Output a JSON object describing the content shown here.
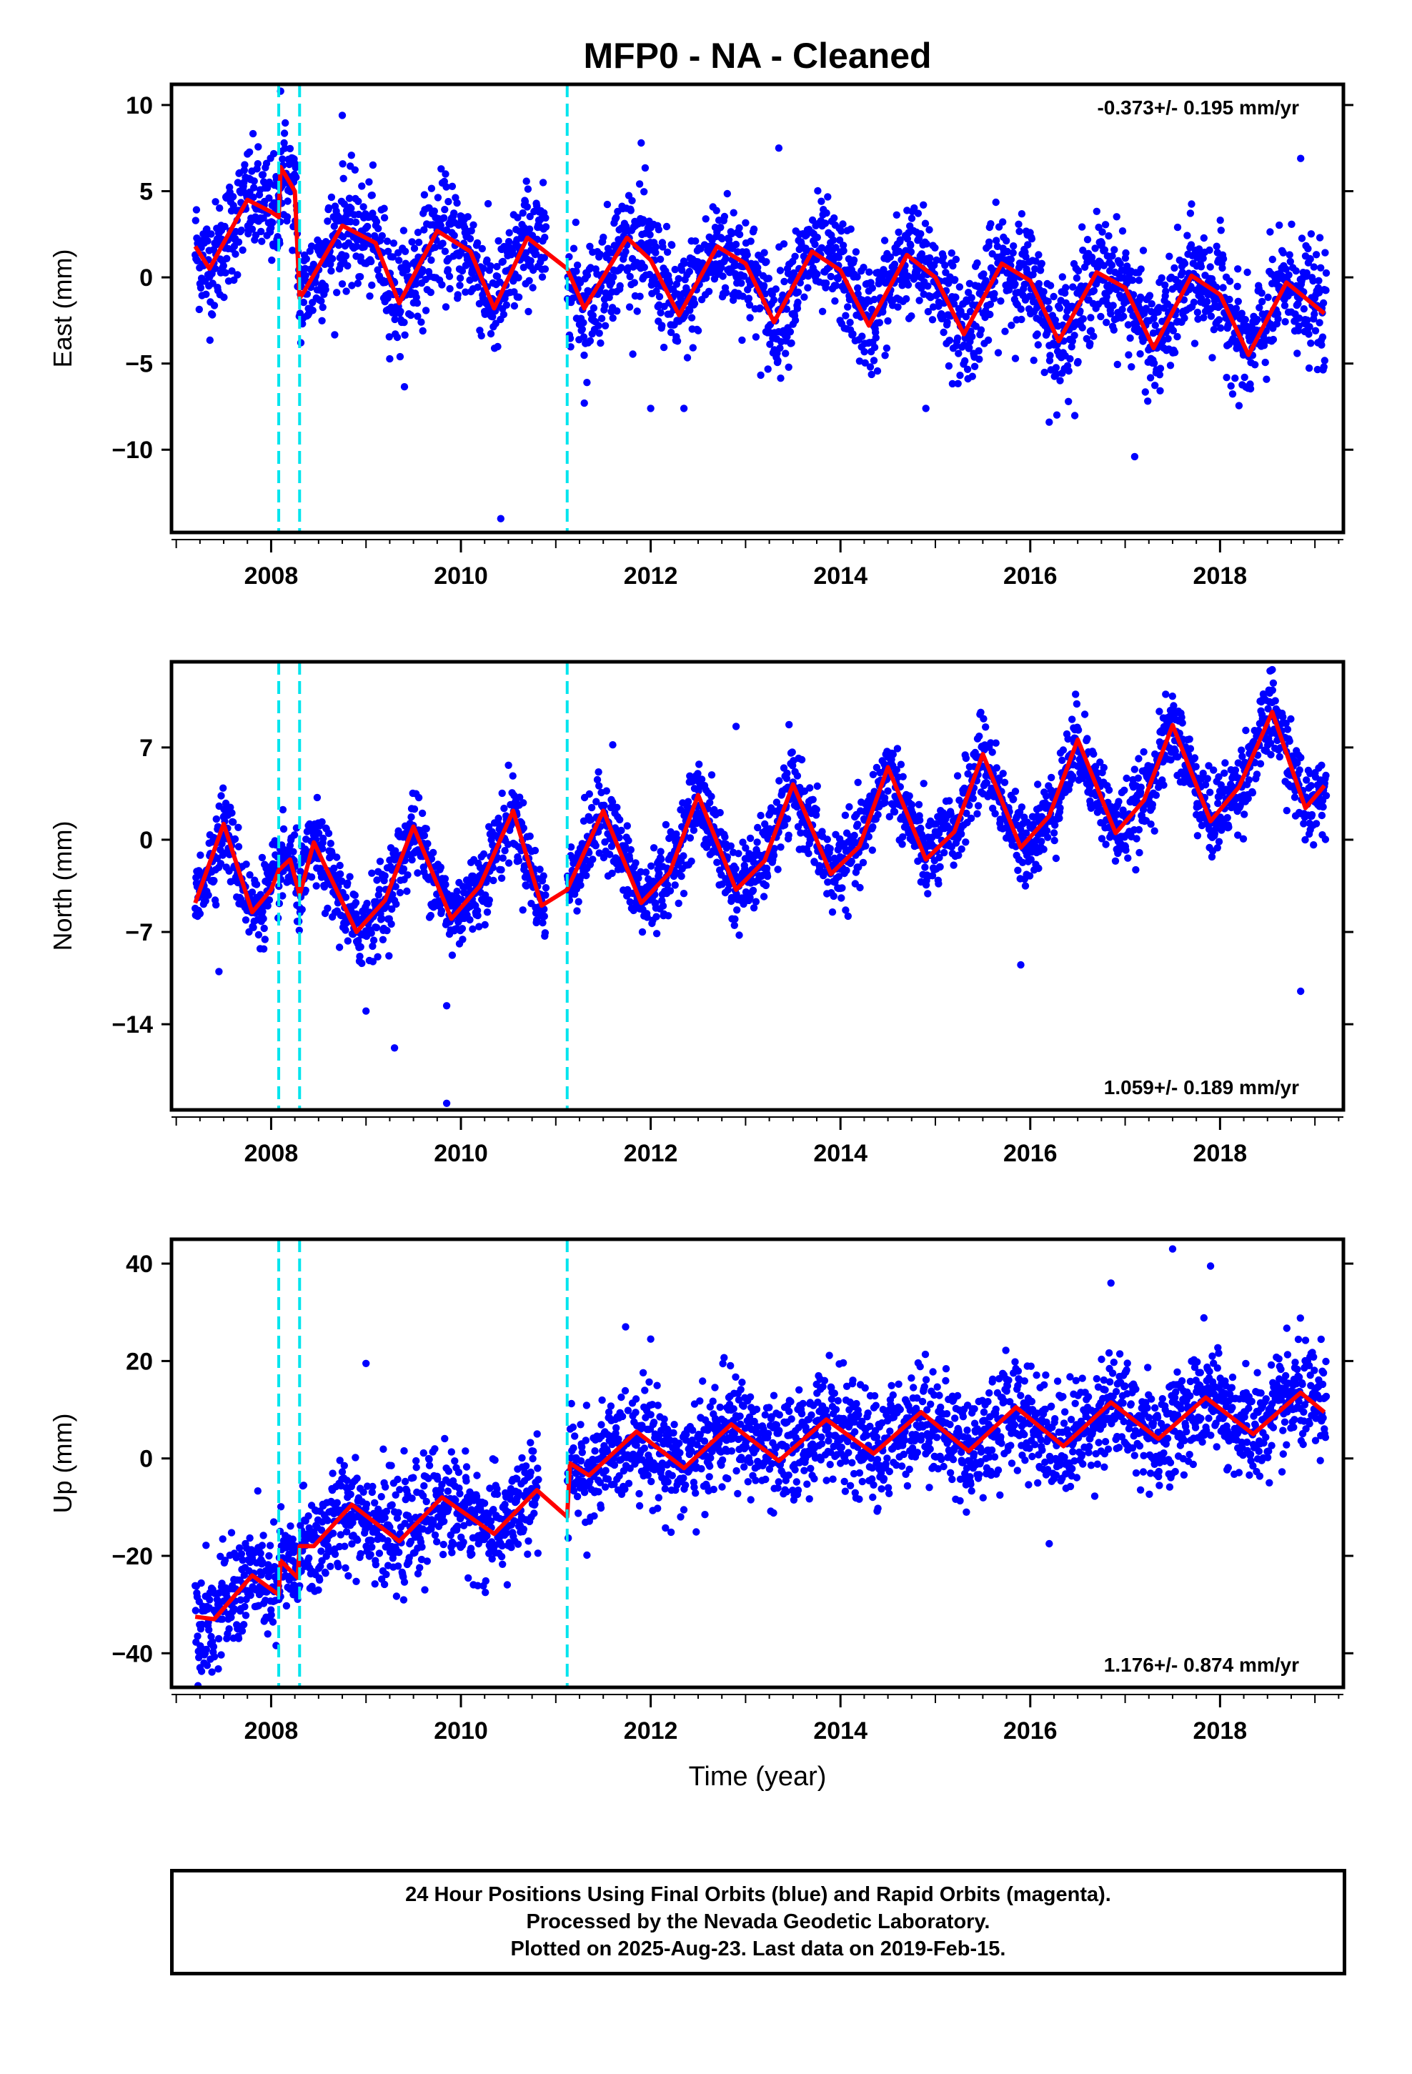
{
  "title": "MFP0  - NA - Cleaned",
  "xlabel": "Time (year)",
  "footer": {
    "line1": "24 Hour Positions Using Final Orbits (blue) and Rapid Orbits (magenta).",
    "line2": "Processed by the Nevada Geodetic Laboratory.",
    "line3": "Plotted on 2025-Aug-23. Last data on 2019-Feb-15."
  },
  "colors": {
    "data_points": "#0000ff",
    "model_line": "#ff0000",
    "offset_lines": "#00e5ee",
    "frame": "#000000"
  },
  "chart_data": [
    {
      "type": "scatter",
      "component": "East",
      "ylabel": "East (mm)",
      "rate_label": "-0.373+/- 0.195 mm/yr",
      "rate_position": "top-right",
      "xlim": [
        2006.95,
        2019.3
      ],
      "ylim": [
        -14.8,
        11.2
      ],
      "yticks": [
        10,
        5,
        0,
        -5,
        -10
      ],
      "xticks": [
        2008,
        2010,
        2012,
        2014,
        2016,
        2018
      ],
      "offsets": [
        2008.08,
        2008.3,
        2011.12
      ],
      "model": {
        "x": [
          2007.2,
          2007.35,
          2007.5,
          2007.75,
          2008.0,
          2008.08,
          2008.1,
          2008.25,
          2008.3,
          2008.35,
          2008.75,
          2009.1,
          2009.35,
          2009.75,
          2010.1,
          2010.35,
          2010.7,
          2011.12,
          2011.3,
          2011.75,
          2012.0,
          2012.3,
          2012.7,
          2013.0,
          2013.3,
          2013.7,
          2014.0,
          2014.3,
          2014.7,
          2015.0,
          2015.3,
          2015.7,
          2016.0,
          2016.3,
          2016.7,
          2017.0,
          2017.3,
          2017.7,
          2018.0,
          2018.3,
          2018.7,
          2019.1
        ],
        "y": [
          1.8,
          0.5,
          2.0,
          4.5,
          3.8,
          3.5,
          6.4,
          5.0,
          -1.2,
          -0.8,
          3.0,
          2.0,
          -1.5,
          2.7,
          1.5,
          -1.8,
          2.3,
          0.5,
          -1.8,
          2.3,
          1.0,
          -2.2,
          1.8,
          0.8,
          -2.6,
          1.5,
          0.4,
          -2.8,
          1.3,
          0.0,
          -3.3,
          0.8,
          -0.2,
          -3.7,
          0.3,
          -0.6,
          -4.1,
          0.1,
          -1.0,
          -4.5,
          -0.3,
          -2.1
        ]
      },
      "series": {
        "name": "",
        "amplitude": 2.8,
        "trend": -0.373,
        "noise": 1.6,
        "outliers": [
          [
            2008.1,
            10.8
          ],
          [
            2008.75,
            9.4
          ],
          [
            2010.42,
            -14.0
          ],
          [
            2011.3,
            -7.3
          ],
          [
            2011.9,
            7.8
          ],
          [
            2012.0,
            -7.6
          ],
          [
            2012.35,
            -7.6
          ],
          [
            2013.35,
            7.5
          ],
          [
            2014.9,
            -7.6
          ],
          [
            2016.2,
            -8.4
          ],
          [
            2017.1,
            -10.4
          ],
          [
            2018.85,
            6.9
          ]
        ]
      }
    },
    {
      "type": "scatter",
      "component": "North",
      "ylabel": "North (mm)",
      "rate_label": "1.059+/- 0.189 mm/yr",
      "rate_position": "bottom-right",
      "xlim": [
        2006.95,
        2019.3
      ],
      "ylim": [
        -20.5,
        13.5
      ],
      "yticks": [
        7,
        0,
        -7,
        -14
      ],
      "xticks": [
        2008,
        2010,
        2012,
        2014,
        2016,
        2018
      ],
      "offsets": [
        2008.08,
        2008.3,
        2011.12
      ],
      "model": {
        "x": [
          2007.2,
          2007.5,
          2007.8,
          2008.0,
          2008.08,
          2008.2,
          2008.3,
          2008.45,
          2008.9,
          2009.2,
          2009.5,
          2009.9,
          2010.2,
          2010.55,
          2010.85,
          2011.12,
          2011.5,
          2011.9,
          2012.2,
          2012.5,
          2012.9,
          2013.2,
          2013.5,
          2013.9,
          2014.2,
          2014.5,
          2014.9,
          2015.2,
          2015.5,
          2015.9,
          2016.2,
          2016.5,
          2016.9,
          2017.2,
          2017.5,
          2017.9,
          2018.2,
          2018.55,
          2018.9,
          2019.1
        ],
        "y": [
          -4.8,
          1.2,
          -5.5,
          -3.8,
          -2.3,
          -1.5,
          -4.2,
          -0.2,
          -7.0,
          -4.6,
          1.0,
          -6.0,
          -3.5,
          2.2,
          -5.0,
          -3.8,
          2.2,
          -4.8,
          -2.5,
          3.4,
          -3.8,
          -1.6,
          4.2,
          -2.6,
          -0.5,
          5.5,
          -1.5,
          0.6,
          6.5,
          -0.6,
          1.8,
          7.6,
          0.5,
          3.0,
          8.7,
          1.4,
          4.0,
          9.7,
          2.4,
          4.1
        ]
      },
      "series": {
        "name": "",
        "amplitude": 4.0,
        "trend": 1.059,
        "noise": 1.5,
        "outliers": [
          [
            2007.45,
            -10.0
          ],
          [
            2009.0,
            -13.0
          ],
          [
            2009.3,
            -15.8
          ],
          [
            2009.85,
            -12.6
          ],
          [
            2009.85,
            -20.0
          ],
          [
            2011.6,
            7.2
          ],
          [
            2012.9,
            8.6
          ],
          [
            2015.9,
            -9.5
          ],
          [
            2018.55,
            12.9
          ],
          [
            2018.85,
            -11.5
          ]
        ]
      }
    },
    {
      "type": "scatter",
      "component": "Up",
      "ylabel": "Up (mm)",
      "rate_label": "1.176+/- 0.874 mm/yr",
      "rate_position": "bottom-right",
      "xlim": [
        2006.95,
        2019.3
      ],
      "ylim": [
        -47,
        45
      ],
      "yticks": [
        40,
        20,
        0,
        -20,
        -40
      ],
      "xticks": [
        2008,
        2010,
        2012,
        2014,
        2016,
        2018
      ],
      "offsets": [
        2008.08,
        2008.3,
        2011.12
      ],
      "model": {
        "x": [
          2007.2,
          2007.4,
          2007.8,
          2008.08,
          2008.1,
          2008.28,
          2008.3,
          2008.45,
          2008.85,
          2009.35,
          2009.8,
          2010.35,
          2010.8,
          2011.12,
          2011.15,
          2011.35,
          2011.85,
          2012.35,
          2012.85,
          2013.35,
          2013.85,
          2014.35,
          2014.85,
          2015.35,
          2015.85,
          2016.35,
          2016.85,
          2017.35,
          2017.85,
          2018.35,
          2018.85,
          2019.1
        ],
        "y": [
          -32.5,
          -33.0,
          -24.0,
          -28.0,
          -21.0,
          -24.5,
          -18.0,
          -18.0,
          -9.5,
          -17.0,
          -8.0,
          -15.5,
          -6.5,
          -12.0,
          -1.0,
          -3.5,
          5.5,
          -2.0,
          7.0,
          -0.5,
          8.0,
          1.0,
          9.5,
          1.5,
          10.5,
          2.5,
          11.5,
          4.0,
          12.5,
          5.0,
          13.5,
          9.5
        ]
      },
      "series": {
        "name": "",
        "amplitude": 5.0,
        "trend": 1.176,
        "noise": 5.5,
        "outliers": [
          [
            2009.0,
            19.5
          ],
          [
            2012.0,
            24.5
          ],
          [
            2016.2,
            -17.5
          ],
          [
            2016.85,
            36.0
          ],
          [
            2017.5,
            43.0
          ],
          [
            2017.9,
            39.5
          ]
        ]
      }
    }
  ]
}
